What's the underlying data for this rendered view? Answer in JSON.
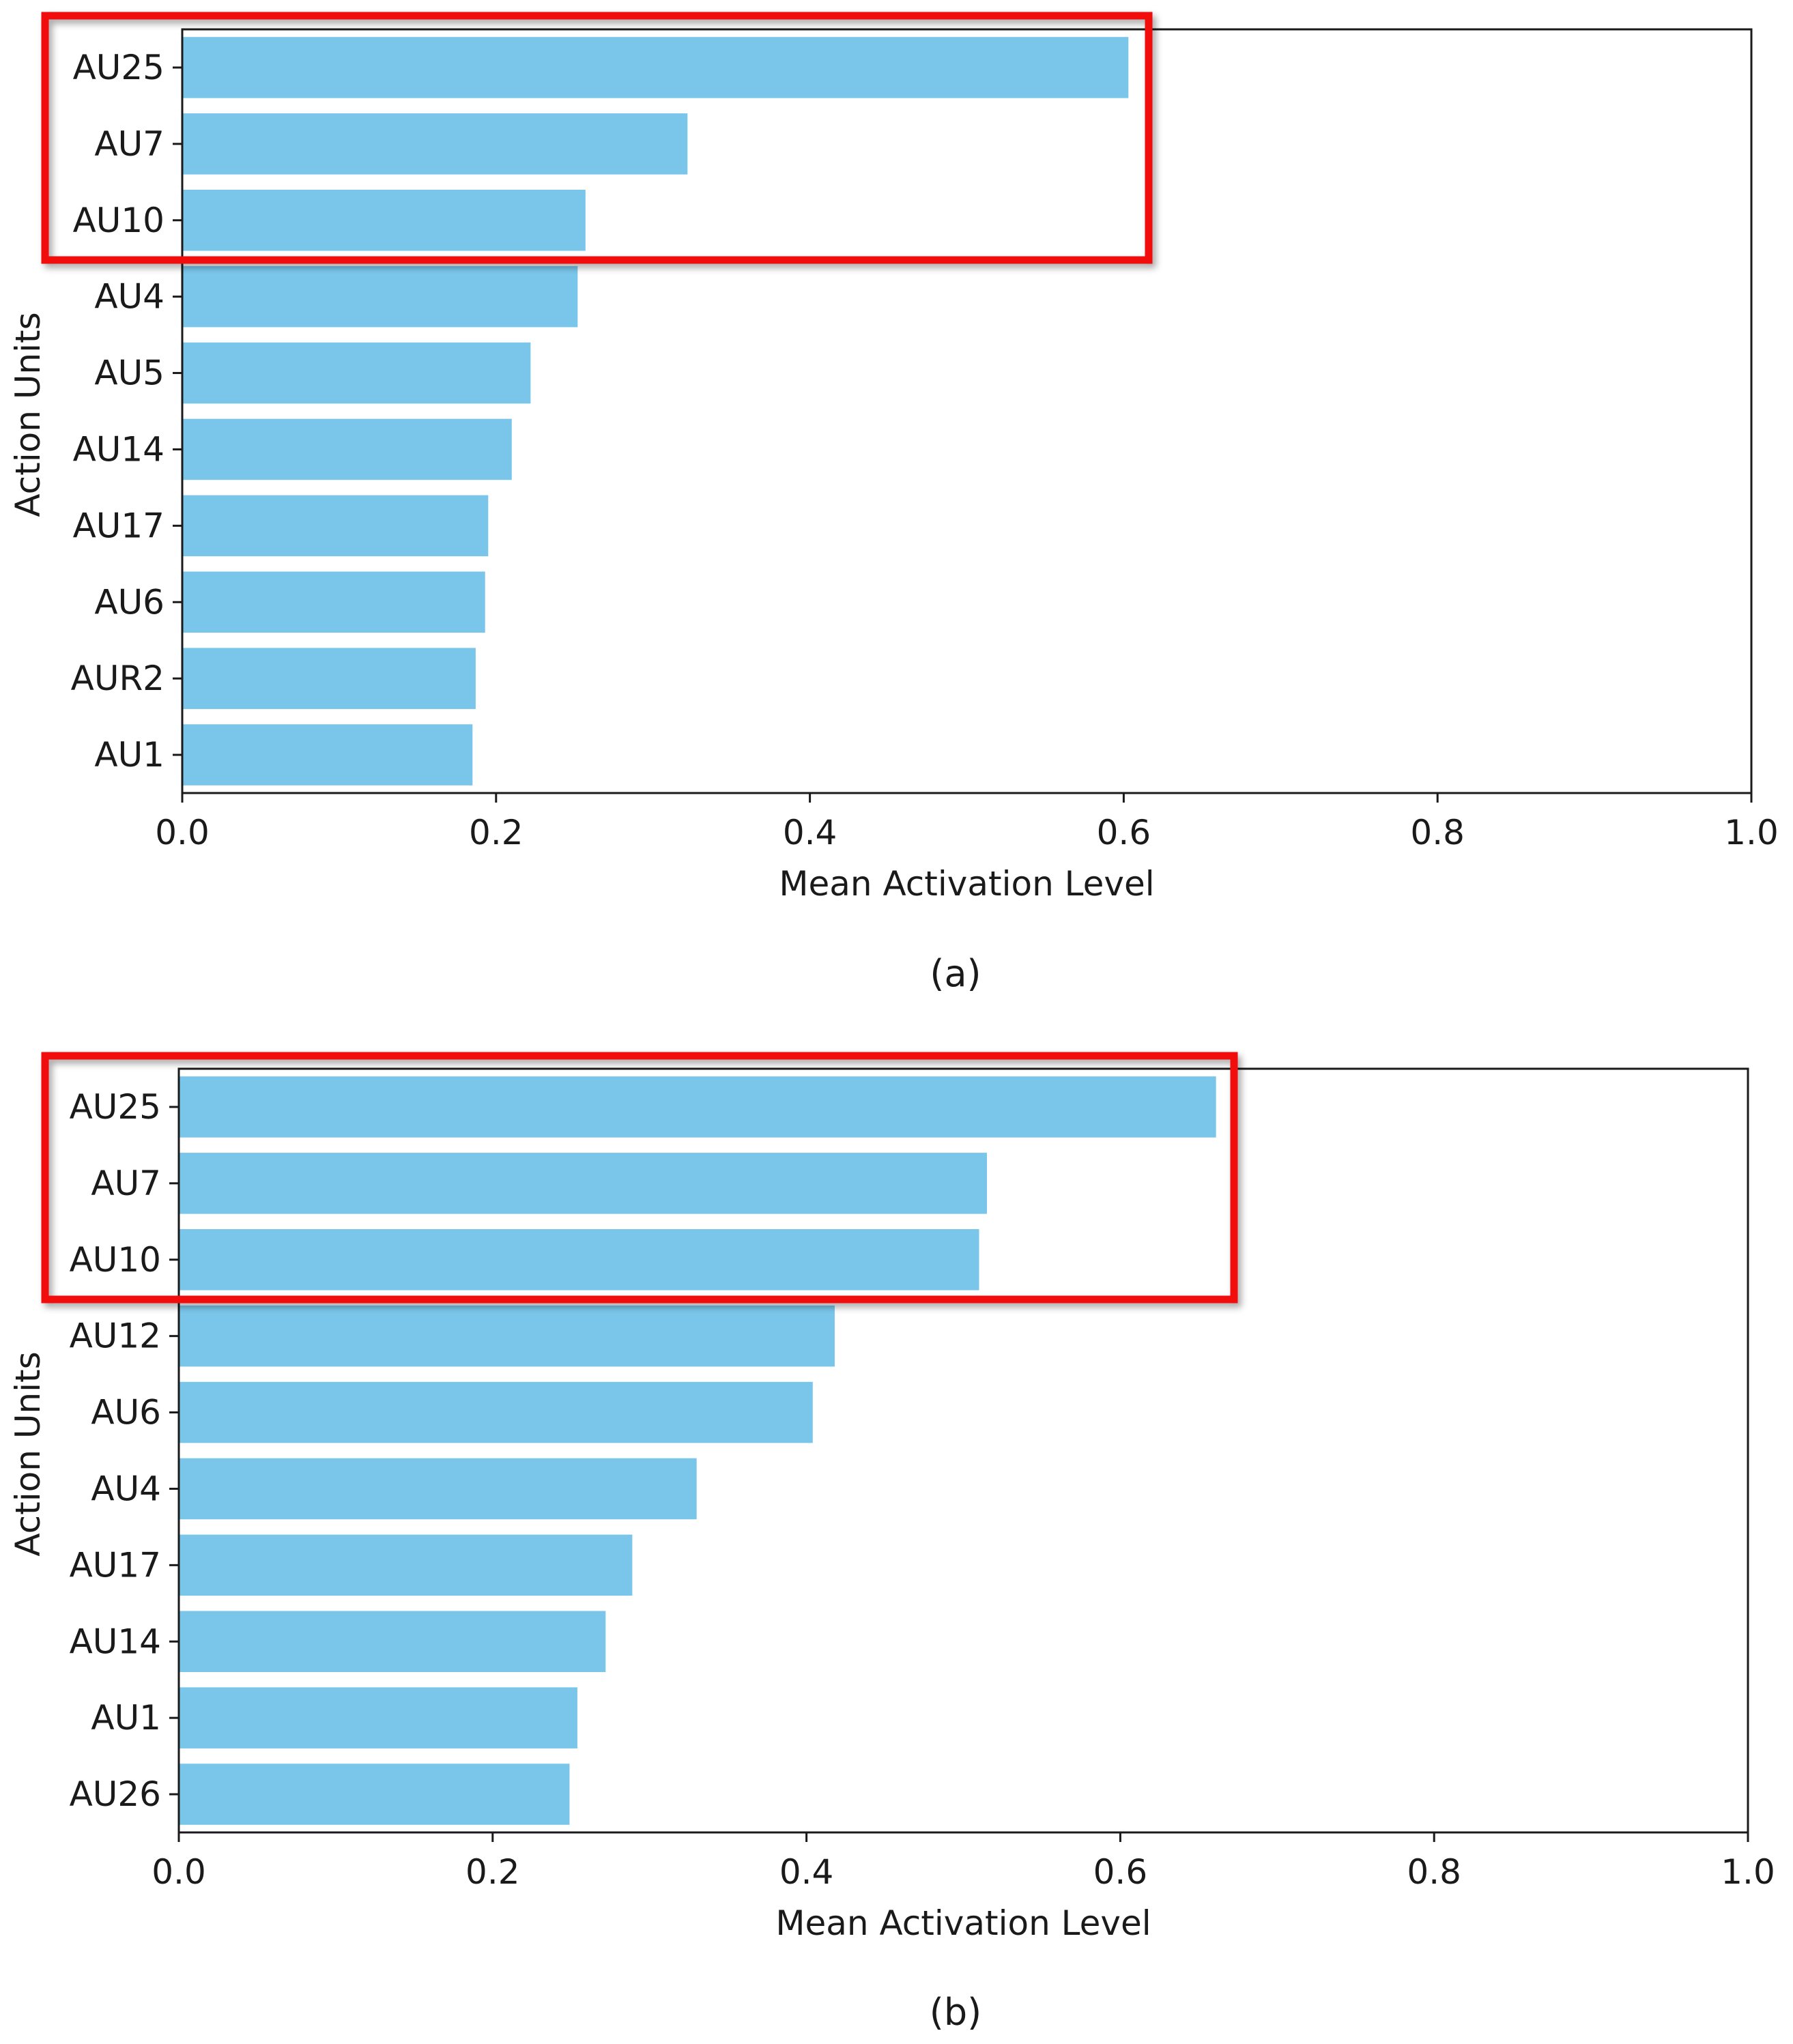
{
  "chart_data": [
    {
      "type": "bar",
      "orientation": "horizontal",
      "panel_label": "(a)",
      "categories": [
        "AU25",
        "AU7",
        "AU10",
        "AU4",
        "AU5",
        "AU14",
        "AU17",
        "AU6",
        "AUR2",
        "AU1"
      ],
      "values": [
        0.603,
        0.322,
        0.257,
        0.252,
        0.222,
        0.21,
        0.195,
        0.193,
        0.187,
        0.185
      ],
      "xlabel": "Mean Activation Level",
      "ylabel": "Action Units",
      "xlim": [
        0,
        1.0
      ],
      "xticks": [
        0.0,
        0.2,
        0.4,
        0.6,
        0.8,
        1.0
      ],
      "xtick_labels": [
        "0.0",
        "0.2",
        "0.4",
        "0.6",
        "0.8",
        "1.0"
      ],
      "grid": false,
      "bar_color": "#7ac6eb",
      "highlight": {
        "categories": [
          "AU25",
          "AU7",
          "AU10"
        ],
        "color": "#f20f0f"
      }
    },
    {
      "type": "bar",
      "orientation": "horizontal",
      "panel_label": "(b)",
      "categories": [
        "AU25",
        "AU7",
        "AU10",
        "AU12",
        "AU6",
        "AU4",
        "AU17",
        "AU14",
        "AU1",
        "AU26"
      ],
      "values": [
        0.661,
        0.515,
        0.51,
        0.418,
        0.404,
        0.33,
        0.289,
        0.272,
        0.254,
        0.249
      ],
      "xlabel": "Mean Activation Level",
      "ylabel": "Action Units",
      "xlim": [
        0,
        1.0
      ],
      "xticks": [
        0.0,
        0.2,
        0.4,
        0.6,
        0.8,
        1.0
      ],
      "xtick_labels": [
        "0.0",
        "0.2",
        "0.4",
        "0.6",
        "0.8",
        "1.0"
      ],
      "grid": false,
      "bar_color": "#7ac6eb",
      "highlight": {
        "categories": [
          "AU25",
          "AU7",
          "AU10"
        ],
        "color": "#f20f0f"
      }
    }
  ]
}
